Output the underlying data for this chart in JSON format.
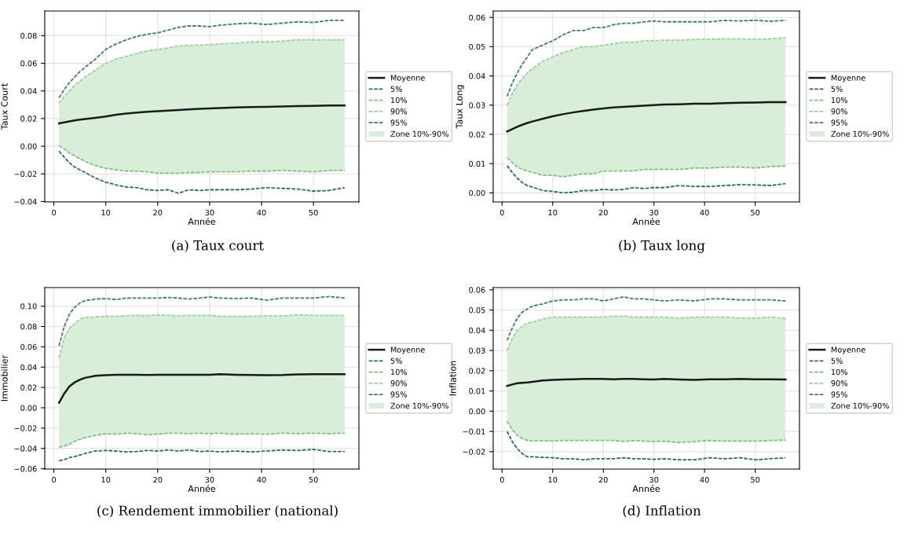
{
  "chart_data": [
    {
      "type": "line",
      "title": "(a) Taux court",
      "xlabel": "Année",
      "ylabel": "Taux Court",
      "annotations": [
        "Zone 10%-90%"
      ],
      "x": [
        1,
        2,
        3,
        4,
        5,
        6,
        8,
        10,
        12,
        14,
        16,
        18,
        20,
        22,
        24,
        26,
        28,
        30,
        32,
        35,
        38,
        41,
        44,
        47,
        50,
        53,
        56
      ],
      "xlim": [
        -1.75,
        58.75
      ],
      "xticks": [
        0,
        10,
        20,
        30,
        40,
        50
      ],
      "ylim": [
        -0.0403,
        0.0978
      ],
      "yticks": [
        {
          "value": -0.04,
          "label": "−0.04"
        },
        {
          "value": -0.02,
          "label": "−0.02"
        },
        {
          "value": 0.0,
          "label": "0.00"
        },
        {
          "value": 0.02,
          "label": "0.02"
        },
        {
          "value": 0.04,
          "label": "0.04"
        },
        {
          "value": 0.06,
          "label": "0.06"
        },
        {
          "value": 0.08,
          "label": "0.08"
        }
      ],
      "grid": true,
      "legend": "right",
      "series": [
        {
          "name": "Moyenne",
          "color": "#1a1a1a",
          "line_style": "solid",
          "values": [
            0.0165,
            0.0172,
            0.018,
            0.0187,
            0.0192,
            0.0196,
            0.0205,
            0.0215,
            0.0228,
            0.0236,
            0.0243,
            0.0249,
            0.0253,
            0.0258,
            0.0262,
            0.0266,
            0.027,
            0.0273,
            0.0276,
            0.028,
            0.0283,
            0.0285,
            0.0288,
            0.0291,
            0.0292,
            0.0294,
            0.0295
          ],
          "lower": [
            0.0005,
            -0.002,
            -0.005,
            -0.007,
            -0.009,
            -0.011,
            -0.014,
            -0.016,
            -0.017,
            -0.018,
            -0.018,
            -0.0185,
            -0.0195,
            -0.0195,
            -0.0195,
            -0.019,
            -0.019,
            -0.0185,
            -0.0185,
            -0.0185,
            -0.018,
            -0.018,
            -0.0175,
            -0.018,
            -0.0185,
            -0.0175,
            -0.0175
          ],
          "upper": [
            0.031,
            0.036,
            0.04,
            0.044,
            0.047,
            0.05,
            0.055,
            0.06,
            0.063,
            0.065,
            0.067,
            0.069,
            0.07,
            0.071,
            0.0725,
            0.073,
            0.073,
            0.0735,
            0.074,
            0.0745,
            0.0755,
            0.0755,
            0.076,
            0.077,
            0.077,
            0.077,
            0.077
          ]
        },
        {
          "name": "5%",
          "color": "#2e6b57",
          "line_style": "dashed",
          "values": [
            -0.0035,
            -0.008,
            -0.012,
            -0.015,
            -0.017,
            -0.019,
            -0.023,
            -0.026,
            -0.028,
            -0.0295,
            -0.03,
            -0.0315,
            -0.032,
            -0.0315,
            -0.034,
            -0.0315,
            -0.032,
            -0.0315,
            -0.0315,
            -0.0315,
            -0.031,
            -0.03,
            -0.0305,
            -0.031,
            -0.0325,
            -0.032,
            -0.03
          ]
        },
        {
          "name": "10%",
          "color": "#7cc47c",
          "line_style": "dashed",
          "values": [
            0.0005,
            -0.002,
            -0.005,
            -0.007,
            -0.009,
            -0.011,
            -0.014,
            -0.016,
            -0.017,
            -0.018,
            -0.018,
            -0.0185,
            -0.0195,
            -0.0195,
            -0.0195,
            -0.019,
            -0.019,
            -0.0185,
            -0.0185,
            -0.0185,
            -0.018,
            -0.018,
            -0.0175,
            -0.018,
            -0.0185,
            -0.0175,
            -0.0175
          ]
        },
        {
          "name": "90%",
          "color": "#9bd29b",
          "line_style": "dashed",
          "values": [
            0.031,
            0.036,
            0.04,
            0.044,
            0.047,
            0.05,
            0.055,
            0.06,
            0.063,
            0.065,
            0.067,
            0.069,
            0.07,
            0.071,
            0.0725,
            0.073,
            0.073,
            0.0735,
            0.074,
            0.0745,
            0.0755,
            0.0755,
            0.076,
            0.077,
            0.077,
            0.077,
            0.077
          ]
        },
        {
          "name": "95%",
          "color": "#3f7d68",
          "line_style": "dashed",
          "values": [
            0.035,
            0.041,
            0.046,
            0.05,
            0.054,
            0.057,
            0.063,
            0.07,
            0.074,
            0.077,
            0.0795,
            0.081,
            0.082,
            0.084,
            0.086,
            0.087,
            0.087,
            0.0865,
            0.0875,
            0.0885,
            0.089,
            0.088,
            0.089,
            0.09,
            0.0895,
            0.091,
            0.091
          ]
        }
      ]
    },
    {
      "type": "line",
      "title": "(b) Taux long",
      "xlabel": "Année",
      "ylabel": "Taux Long",
      "annotations": [
        "Zone 10%-90%"
      ],
      "x": [
        1,
        2,
        3,
        4,
        5,
        6,
        8,
        10,
        12,
        14,
        16,
        18,
        20,
        22,
        24,
        26,
        28,
        30,
        32,
        35,
        38,
        41,
        44,
        47,
        50,
        53,
        56
      ],
      "xlim": [
        -1.75,
        58.75
      ],
      "xticks": [
        0,
        10,
        20,
        30,
        40,
        50
      ],
      "ylim": [
        -0.0031,
        0.0622
      ],
      "yticks": [
        {
          "value": 0.0,
          "label": "0.00"
        },
        {
          "value": 0.01,
          "label": "0.01"
        },
        {
          "value": 0.02,
          "label": "0.02"
        },
        {
          "value": 0.03,
          "label": "0.03"
        },
        {
          "value": 0.04,
          "label": "0.04"
        },
        {
          "value": 0.05,
          "label": "0.05"
        },
        {
          "value": 0.06,
          "label": "0.06"
        }
      ],
      "grid": true,
      "legend": "right",
      "series": [
        {
          "name": "Moyenne",
          "color": "#1a1a1a",
          "line_style": "solid",
          "values": [
            0.021,
            0.0218,
            0.0226,
            0.0233,
            0.0239,
            0.0244,
            0.0253,
            0.0262,
            0.0269,
            0.0275,
            0.028,
            0.0285,
            0.0289,
            0.0292,
            0.0294,
            0.0296,
            0.0298,
            0.03,
            0.0302,
            0.0303,
            0.0305,
            0.0305,
            0.0307,
            0.0308,
            0.0309,
            0.031,
            0.031
          ],
          "lower": [
            0.012,
            0.0105,
            0.0088,
            0.008,
            0.0075,
            0.007,
            0.006,
            0.006,
            0.0055,
            0.006,
            0.0065,
            0.0065,
            0.0075,
            0.0075,
            0.0075,
            0.0075,
            0.008,
            0.008,
            0.008,
            0.008,
            0.0085,
            0.0085,
            0.0088,
            0.0088,
            0.0085,
            0.009,
            0.0092
          ],
          "upper": [
            0.03,
            0.034,
            0.037,
            0.039,
            0.041,
            0.0425,
            0.045,
            0.0465,
            0.048,
            0.049,
            0.05,
            0.05,
            0.0505,
            0.051,
            0.0515,
            0.0515,
            0.052,
            0.052,
            0.0522,
            0.0522,
            0.0525,
            0.0525,
            0.0527,
            0.0527,
            0.0525,
            0.0527,
            0.053
          ]
        },
        {
          "name": "5%",
          "color": "#2e6b57",
          "line_style": "dashed",
          "values": [
            0.0093,
            0.007,
            0.005,
            0.0035,
            0.0025,
            0.002,
            0.0008,
            0.0005,
            0.0,
            0.0002,
            0.0008,
            0.0008,
            0.0012,
            0.001,
            0.0012,
            0.0018,
            0.0015,
            0.0018,
            0.0018,
            0.0025,
            0.0022,
            0.0022,
            0.0025,
            0.0028,
            0.0027,
            0.0025,
            0.0032
          ]
        },
        {
          "name": "10%",
          "color": "#7cc47c",
          "line_style": "dashed",
          "values": [
            0.012,
            0.0105,
            0.0088,
            0.008,
            0.0075,
            0.007,
            0.006,
            0.006,
            0.0055,
            0.006,
            0.0065,
            0.0065,
            0.0075,
            0.0075,
            0.0075,
            0.0075,
            0.008,
            0.008,
            0.008,
            0.008,
            0.0085,
            0.0085,
            0.0088,
            0.0088,
            0.0085,
            0.009,
            0.0092
          ]
        },
        {
          "name": "90%",
          "color": "#9bd29b",
          "line_style": "dashed",
          "values": [
            0.03,
            0.034,
            0.037,
            0.039,
            0.041,
            0.0425,
            0.045,
            0.0465,
            0.048,
            0.049,
            0.05,
            0.05,
            0.0505,
            0.051,
            0.0515,
            0.0515,
            0.052,
            0.052,
            0.0522,
            0.0522,
            0.0525,
            0.0525,
            0.0527,
            0.0527,
            0.0525,
            0.0527,
            0.053
          ]
        },
        {
          "name": "95%",
          "color": "#3f7d68",
          "line_style": "dashed",
          "values": [
            0.033,
            0.0375,
            0.041,
            0.044,
            0.0465,
            0.049,
            0.0505,
            0.052,
            0.054,
            0.0555,
            0.0555,
            0.0565,
            0.0565,
            0.0575,
            0.058,
            0.058,
            0.0585,
            0.0588,
            0.0585,
            0.0585,
            0.0585,
            0.0585,
            0.059,
            0.0588,
            0.059,
            0.0587,
            0.059
          ]
        }
      ]
    },
    {
      "type": "line",
      "title": "(c) Rendement immobilier (national)",
      "xlabel": "Année",
      "ylabel": "Immobilier",
      "annotations": [
        "Zone 10%-90%"
      ],
      "x": [
        1,
        2,
        3,
        4,
        5,
        6,
        8,
        10,
        12,
        14,
        16,
        18,
        20,
        22,
        24,
        26,
        28,
        30,
        32,
        35,
        38,
        41,
        44,
        47,
        50,
        53,
        56
      ],
      "xlim": [
        -1.75,
        58.75
      ],
      "xticks": [
        0,
        10,
        20,
        30,
        40,
        50
      ],
      "ylim": [
        -0.0603,
        0.1183
      ],
      "yticks": [
        {
          "value": -0.06,
          "label": "−0.06"
        },
        {
          "value": -0.04,
          "label": "−0.04"
        },
        {
          "value": -0.02,
          "label": "−0.02"
        },
        {
          "value": 0.0,
          "label": "0.00"
        },
        {
          "value": 0.02,
          "label": "0.02"
        },
        {
          "value": 0.04,
          "label": "0.04"
        },
        {
          "value": 0.06,
          "label": "0.06"
        },
        {
          "value": 0.08,
          "label": "0.08"
        },
        {
          "value": 0.1,
          "label": "0.10"
        }
      ],
      "grid": true,
      "legend": "right",
      "series": [
        {
          "name": "Moyenne",
          "color": "#1a1a1a",
          "line_style": "solid",
          "values": [
            0.005,
            0.014,
            0.021,
            0.025,
            0.0275,
            0.0295,
            0.0315,
            0.032,
            0.0325,
            0.0325,
            0.0325,
            0.0322,
            0.0325,
            0.0325,
            0.0325,
            0.0325,
            0.0325,
            0.0325,
            0.033,
            0.0325,
            0.0322,
            0.032,
            0.0322,
            0.0328,
            0.033,
            0.033,
            0.033
          ],
          "lower": [
            -0.039,
            -0.0375,
            -0.036,
            -0.033,
            -0.031,
            -0.0295,
            -0.027,
            -0.0255,
            -0.026,
            -0.025,
            -0.0255,
            -0.0265,
            -0.026,
            -0.025,
            -0.025,
            -0.0255,
            -0.025,
            -0.0255,
            -0.025,
            -0.026,
            -0.0255,
            -0.026,
            -0.025,
            -0.0255,
            -0.025,
            -0.0255,
            -0.025
          ],
          "upper": [
            0.049,
            0.069,
            0.078,
            0.083,
            0.087,
            0.089,
            0.0895,
            0.09,
            0.09,
            0.0905,
            0.091,
            0.0905,
            0.0915,
            0.091,
            0.0905,
            0.091,
            0.091,
            0.091,
            0.09,
            0.09,
            0.09,
            0.0905,
            0.0905,
            0.0915,
            0.091,
            0.091,
            0.091
          ]
        },
        {
          "name": "5%",
          "color": "#2e6b57",
          "line_style": "dashed",
          "values": [
            -0.052,
            -0.051,
            -0.049,
            -0.048,
            -0.0465,
            -0.045,
            -0.0425,
            -0.042,
            -0.0425,
            -0.0435,
            -0.043,
            -0.042,
            -0.0425,
            -0.0415,
            -0.0425,
            -0.0415,
            -0.043,
            -0.0425,
            -0.0435,
            -0.0425,
            -0.0435,
            -0.0425,
            -0.0415,
            -0.042,
            -0.041,
            -0.043,
            -0.043
          ]
        },
        {
          "name": "10%",
          "color": "#7cc47c",
          "line_style": "dashed",
          "values": [
            -0.039,
            -0.0375,
            -0.036,
            -0.033,
            -0.031,
            -0.0295,
            -0.027,
            -0.0255,
            -0.026,
            -0.025,
            -0.0255,
            -0.0265,
            -0.026,
            -0.025,
            -0.025,
            -0.0255,
            -0.025,
            -0.0255,
            -0.025,
            -0.026,
            -0.0255,
            -0.026,
            -0.025,
            -0.0255,
            -0.025,
            -0.0255,
            -0.025
          ]
        },
        {
          "name": "90%",
          "color": "#9bd29b",
          "line_style": "dashed",
          "values": [
            0.049,
            0.069,
            0.078,
            0.083,
            0.087,
            0.089,
            0.0895,
            0.09,
            0.09,
            0.0905,
            0.091,
            0.0905,
            0.0915,
            0.091,
            0.0905,
            0.091,
            0.091,
            0.091,
            0.09,
            0.09,
            0.09,
            0.0905,
            0.0905,
            0.0915,
            0.091,
            0.091,
            0.091
          ]
        },
        {
          "name": "95%",
          "color": "#3f7d68",
          "line_style": "dashed",
          "values": [
            0.061,
            0.08,
            0.092,
            0.099,
            0.103,
            0.1055,
            0.107,
            0.1075,
            0.1065,
            0.108,
            0.108,
            0.108,
            0.108,
            0.1085,
            0.108,
            0.107,
            0.108,
            0.109,
            0.108,
            0.1075,
            0.108,
            0.106,
            0.108,
            0.108,
            0.108,
            0.1095,
            0.108
          ]
        }
      ]
    },
    {
      "type": "line",
      "title": "(d) Inflation",
      "xlabel": "Année",
      "ylabel": "Inflation",
      "annotations": [
        "Zone 10%-90%"
      ],
      "x": [
        1,
        2,
        3,
        4,
        5,
        6,
        8,
        10,
        12,
        14,
        16,
        18,
        20,
        22,
        24,
        26,
        28,
        30,
        32,
        35,
        38,
        41,
        44,
        47,
        50,
        53,
        56
      ],
      "xlim": [
        -1.75,
        58.75
      ],
      "xticks": [
        0,
        10,
        20,
        30,
        40,
        50
      ],
      "ylim": [
        -0.0286,
        0.0611
      ],
      "yticks": [
        {
          "value": -0.02,
          "label": "−0.02"
        },
        {
          "value": -0.01,
          "label": "−0.01"
        },
        {
          "value": 0.0,
          "label": "0.00"
        },
        {
          "value": 0.01,
          "label": "0.01"
        },
        {
          "value": 0.02,
          "label": "0.02"
        },
        {
          "value": 0.03,
          "label": "0.03"
        },
        {
          "value": 0.04,
          "label": "0.04"
        },
        {
          "value": 0.05,
          "label": "0.05"
        },
        {
          "value": 0.06,
          "label": "0.06"
        }
      ],
      "grid": true,
      "legend": "right",
      "series": [
        {
          "name": "Moyenne",
          "color": "#1a1a1a",
          "line_style": "solid",
          "values": [
            0.0125,
            0.0132,
            0.0138,
            0.014,
            0.0142,
            0.0145,
            0.0152,
            0.0155,
            0.0157,
            0.0158,
            0.016,
            0.016,
            0.016,
            0.0158,
            0.016,
            0.016,
            0.0158,
            0.0157,
            0.016,
            0.0157,
            0.0155,
            0.0158,
            0.0158,
            0.016,
            0.0158,
            0.0158,
            0.0157
          ],
          "lower": [
            -0.005,
            -0.009,
            -0.012,
            -0.0135,
            -0.0145,
            -0.0148,
            -0.0145,
            -0.0148,
            -0.0145,
            -0.0145,
            -0.0145,
            -0.0145,
            -0.0145,
            -0.0145,
            -0.015,
            -0.0145,
            -0.0148,
            -0.015,
            -0.0148,
            -0.0155,
            -0.015,
            -0.0145,
            -0.0148,
            -0.0148,
            -0.0148,
            -0.0145,
            -0.0143
          ],
          "upper": [
            0.03,
            0.036,
            0.04,
            0.042,
            0.0435,
            0.044,
            0.0455,
            0.0465,
            0.0465,
            0.0465,
            0.0465,
            0.0465,
            0.0465,
            0.047,
            0.047,
            0.0465,
            0.0465,
            0.0465,
            0.0465,
            0.046,
            0.0465,
            0.0465,
            0.0465,
            0.046,
            0.046,
            0.0465,
            0.0458
          ]
        },
        {
          "name": "5%",
          "color": "#2e6b57",
          "line_style": "dashed",
          "values": [
            -0.01,
            -0.015,
            -0.0185,
            -0.021,
            -0.0225,
            -0.0225,
            -0.0228,
            -0.023,
            -0.0235,
            -0.0235,
            -0.024,
            -0.0235,
            -0.0235,
            -0.0235,
            -0.023,
            -0.0235,
            -0.0235,
            -0.0238,
            -0.0235,
            -0.024,
            -0.024,
            -0.023,
            -0.0235,
            -0.023,
            -0.024,
            -0.0235,
            -0.023
          ]
        },
        {
          "name": "10%",
          "color": "#7cc47c",
          "line_style": "dashed",
          "values": [
            -0.005,
            -0.009,
            -0.012,
            -0.0135,
            -0.0145,
            -0.0148,
            -0.0145,
            -0.0148,
            -0.0145,
            -0.0145,
            -0.0145,
            -0.0145,
            -0.0145,
            -0.0145,
            -0.015,
            -0.0145,
            -0.0148,
            -0.015,
            -0.0148,
            -0.0155,
            -0.015,
            -0.0145,
            -0.0148,
            -0.0148,
            -0.0148,
            -0.0145,
            -0.0143
          ]
        },
        {
          "name": "90%",
          "color": "#9bd29b",
          "line_style": "dashed",
          "values": [
            0.03,
            0.036,
            0.04,
            0.042,
            0.0435,
            0.044,
            0.0455,
            0.0465,
            0.0465,
            0.0465,
            0.0465,
            0.0465,
            0.0465,
            0.047,
            0.047,
            0.0465,
            0.0465,
            0.0465,
            0.0465,
            0.046,
            0.0465,
            0.0465,
            0.0465,
            0.046,
            0.046,
            0.0465,
            0.0458
          ]
        },
        {
          "name": "95%",
          "color": "#3f7d68",
          "line_style": "dashed",
          "values": [
            0.035,
            0.041,
            0.046,
            0.049,
            0.0505,
            0.052,
            0.053,
            0.0545,
            0.055,
            0.055,
            0.0555,
            0.0555,
            0.0545,
            0.0555,
            0.0565,
            0.0555,
            0.0555,
            0.055,
            0.0545,
            0.055,
            0.0545,
            0.0555,
            0.0555,
            0.055,
            0.055,
            0.055,
            0.0545
          ]
        }
      ]
    }
  ]
}
